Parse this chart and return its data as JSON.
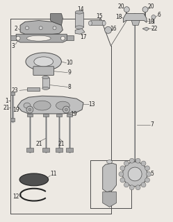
{
  "bg_color": "#ede9e3",
  "line_color": "#4a4a4a",
  "dark_color": "#222222",
  "part_gray": "#b0b0b0",
  "part_dark": "#888888",
  "part_light": "#d0d0d0"
}
